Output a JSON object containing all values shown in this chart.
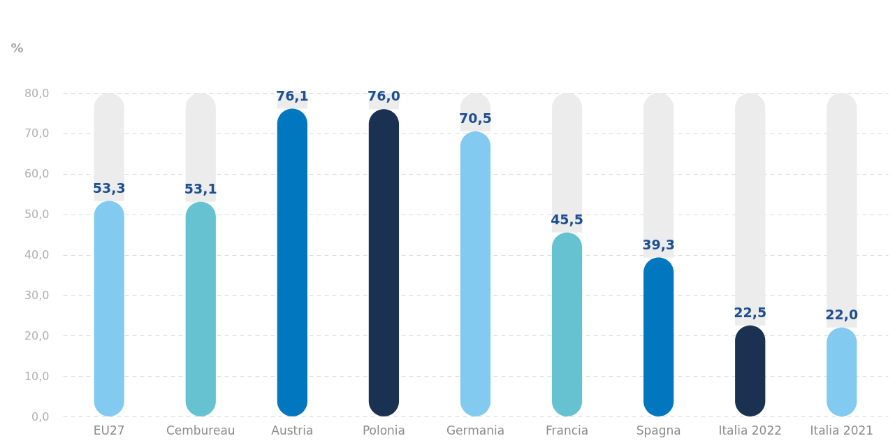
{
  "chart_data": {
    "type": "bar",
    "ylabel": "%",
    "stacked": true,
    "categories": [
      "EU27",
      "Cembureau",
      "Austria",
      "Polonia",
      "Germania",
      "Francia",
      "Spagna",
      "Italia 2022",
      "Italia 2021"
    ],
    "series": [
      {
        "colors": [
          "#82caf0",
          "#66c2d1",
          "#0077be",
          "#1a3152",
          "#82caf0",
          "#66c2d1",
          "#0077be",
          "#1a3152",
          "#82caf0"
        ],
        "values": [
          53.3,
          53.1,
          76.1,
          76.0,
          70.5,
          45.5,
          39.3,
          22.5,
          22.0
        ],
        "value_labels": [
          "53,3",
          "53,1",
          "76,1",
          "76,0",
          "70,5",
          "45,5",
          "39,3",
          "22,5",
          "22,0"
        ]
      },
      {
        "color": "#ececec",
        "values": [
          26.7,
          26.9,
          3.9,
          4.0,
          9.5,
          34.5,
          40.7,
          57.5,
          58.0
        ]
      }
    ],
    "ylim": [
      0,
      80
    ],
    "yticks": [
      {
        "value": 0,
        "label": "0,0"
      },
      {
        "value": 10,
        "label": "10,0"
      },
      {
        "value": 20,
        "label": "20,0"
      },
      {
        "value": 30,
        "label": "30,0"
      },
      {
        "value": 40,
        "label": "40,0"
      },
      {
        "value": 50,
        "label": "50,0"
      },
      {
        "value": 60,
        "label": "60,0"
      },
      {
        "value": 70,
        "label": "70,0"
      },
      {
        "value": 80,
        "label": "80,0"
      }
    ],
    "grid": "y"
  }
}
